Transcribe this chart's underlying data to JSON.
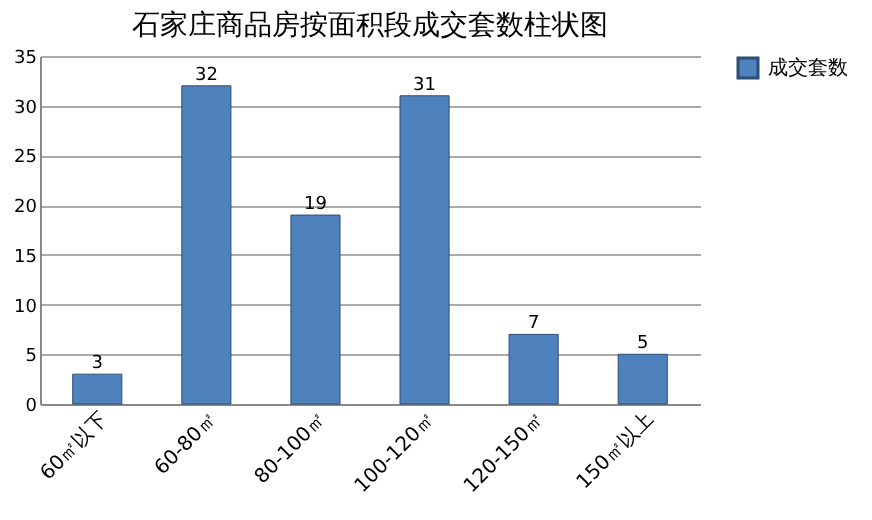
{
  "chart_data": {
    "type": "bar",
    "title": "石家庄商品房按面积段成交套数柱状图",
    "categories": [
      "60㎡以下",
      "60-80㎡",
      "80-100㎡",
      "100-120㎡",
      "120-150㎡",
      "150㎡以上"
    ],
    "series": [
      {
        "name": "成交套数",
        "color": "#4f81bd",
        "values": [
          3,
          32,
          19,
          31,
          7,
          5
        ]
      }
    ],
    "ylim": [
      0,
      35
    ],
    "yticks": [
      0,
      5,
      10,
      15,
      20,
      25,
      30,
      35
    ],
    "grid": "y",
    "legend": "right",
    "data_labels": true
  }
}
